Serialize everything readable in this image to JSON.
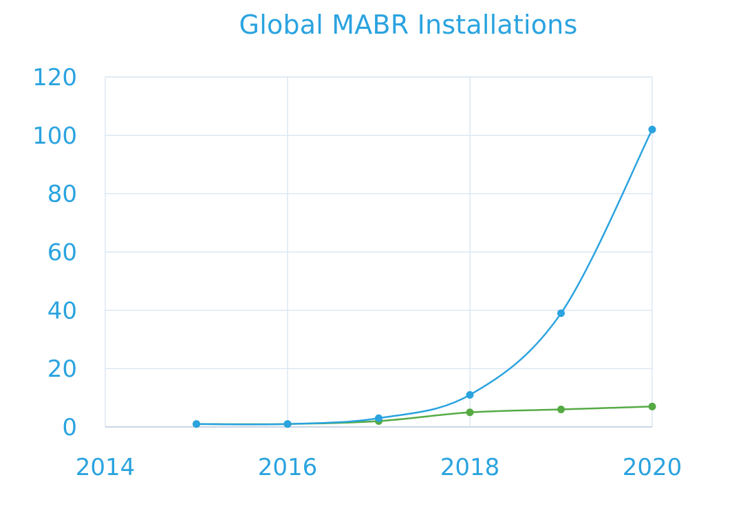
{
  "chart_data": {
    "type": "line",
    "title": "Global MABR Installations",
    "xlabel": "",
    "ylabel": "",
    "xlim": [
      2014,
      2020
    ],
    "ylim": [
      0,
      120
    ],
    "x_ticks": [
      "2014",
      "2016",
      "2018",
      "2020"
    ],
    "y_ticks": [
      "0",
      "20",
      "40",
      "60",
      "80",
      "100",
      "120"
    ],
    "grid": true,
    "legend": "none",
    "smooth": true,
    "series": [
      {
        "color": "#2aa3df",
        "x": [
          2015,
          2016,
          2017,
          2018,
          2019,
          2020
        ],
        "y": [
          1,
          1,
          3,
          11,
          39,
          102
        ]
      },
      {
        "color": "#55aa44",
        "x": [
          2015,
          2016,
          2017,
          2018,
          2019,
          2020
        ],
        "y": [
          1,
          1,
          2,
          5,
          6,
          7
        ]
      }
    ]
  },
  "colors": {
    "text": "#2aa3df",
    "grid": "#dce7f3",
    "axis": "#c9d6e6"
  }
}
